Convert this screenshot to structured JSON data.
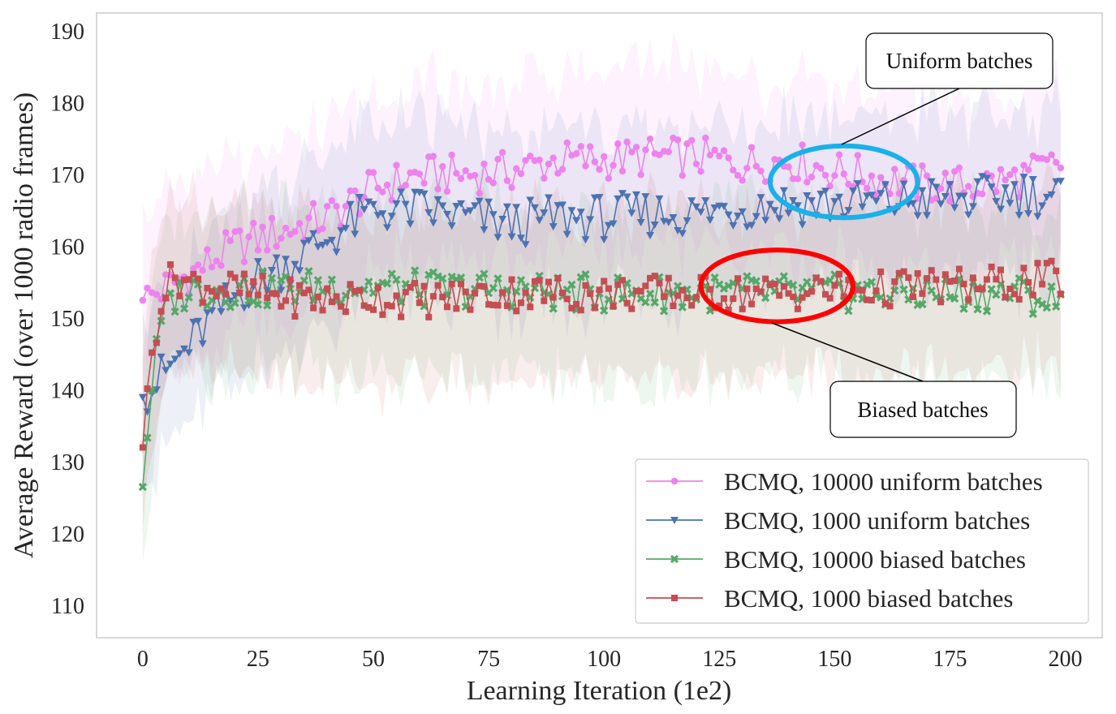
{
  "chart_data": {
    "type": "line",
    "title": "",
    "xlabel": "Learning Iteration (1e2)",
    "ylabel": "Average Reward (over 1000 radio frames)",
    "xlim": [
      -10,
      208
    ],
    "ylim": [
      105.5,
      192.5
    ],
    "xticks": [
      0,
      25,
      50,
      75,
      100,
      125,
      150,
      175,
      200
    ],
    "yticks": [
      110,
      120,
      130,
      140,
      150,
      160,
      170,
      180,
      190
    ],
    "grid": false,
    "legend_position": "lower-right",
    "band_halfwidth": 12,
    "series": [
      {
        "name": "BCMQ, 10000 uniform batches",
        "color": "#ee82ee",
        "marker": "circle",
        "x": [
          0,
          10,
          20,
          30,
          40,
          50,
          60,
          70,
          80,
          90,
          100,
          110,
          120,
          130,
          140,
          150,
          160,
          170,
          180,
          190,
          199
        ],
        "y": [
          152.5,
          156,
          160,
          162,
          164,
          168,
          170,
          170,
          170.5,
          172,
          172,
          172.5,
          172.5,
          171.5,
          172,
          170.5,
          169.5,
          168.5,
          168.5,
          169.5,
          171.5
        ]
      },
      {
        "name": "BCMQ, 1000 uniform batches",
        "color": "#4c72b0",
        "marker": "triangle-down",
        "x": [
          0,
          5,
          10,
          15,
          20,
          25,
          30,
          40,
          50,
          60,
          70,
          80,
          90,
          100,
          110,
          120,
          130,
          140,
          150,
          160,
          170,
          180,
          190,
          199
        ],
        "y": [
          139,
          142.5,
          146,
          150,
          153,
          155.5,
          157,
          161,
          165,
          165,
          164,
          163,
          164,
          164,
          164.5,
          164.5,
          165.5,
          166,
          166,
          166,
          166.5,
          166.5,
          167.5,
          167
        ]
      },
      {
        "name": "BCMQ, 10000 biased batches",
        "color": "#55a868",
        "marker": "x",
        "x": [
          0,
          2,
          4,
          6,
          10,
          20,
          30,
          40,
          50,
          60,
          70,
          80,
          90,
          100,
          110,
          120,
          130,
          140,
          150,
          160,
          170,
          180,
          190,
          199
        ],
        "y": [
          126.5,
          141,
          149,
          152.5,
          154,
          154,
          154,
          154.5,
          154.5,
          154,
          154,
          154,
          153.5,
          153.5,
          153.5,
          153.5,
          153.5,
          153.5,
          153.5,
          153.5,
          153.5,
          153.5,
          153.5,
          152
        ]
      },
      {
        "name": "BCMQ, 1000 biased batches",
        "color": "#c44e52",
        "marker": "square",
        "x": [
          0,
          2,
          4,
          7,
          10,
          20,
          30,
          40,
          50,
          60,
          70,
          80,
          90,
          100,
          110,
          120,
          130,
          140,
          150,
          160,
          170,
          180,
          190,
          199
        ],
        "y": [
          132,
          145,
          153,
          156,
          155,
          154,
          153,
          152.5,
          153,
          152.5,
          153,
          153.5,
          153.5,
          153.5,
          153.5,
          153.5,
          153.5,
          153.5,
          154,
          154,
          154.5,
          154.5,
          155,
          155.5
        ]
      }
    ],
    "annotations": [
      {
        "text": "Uniform batches",
        "ellipse_color": "#1ab0ea",
        "center": [
          152,
          169
        ],
        "radii": [
          16,
          5
        ]
      },
      {
        "text": "Biased batches",
        "ellipse_color": "#ff0000",
        "center": [
          137.5,
          154.5
        ],
        "radii": [
          16.5,
          5
        ]
      }
    ]
  }
}
